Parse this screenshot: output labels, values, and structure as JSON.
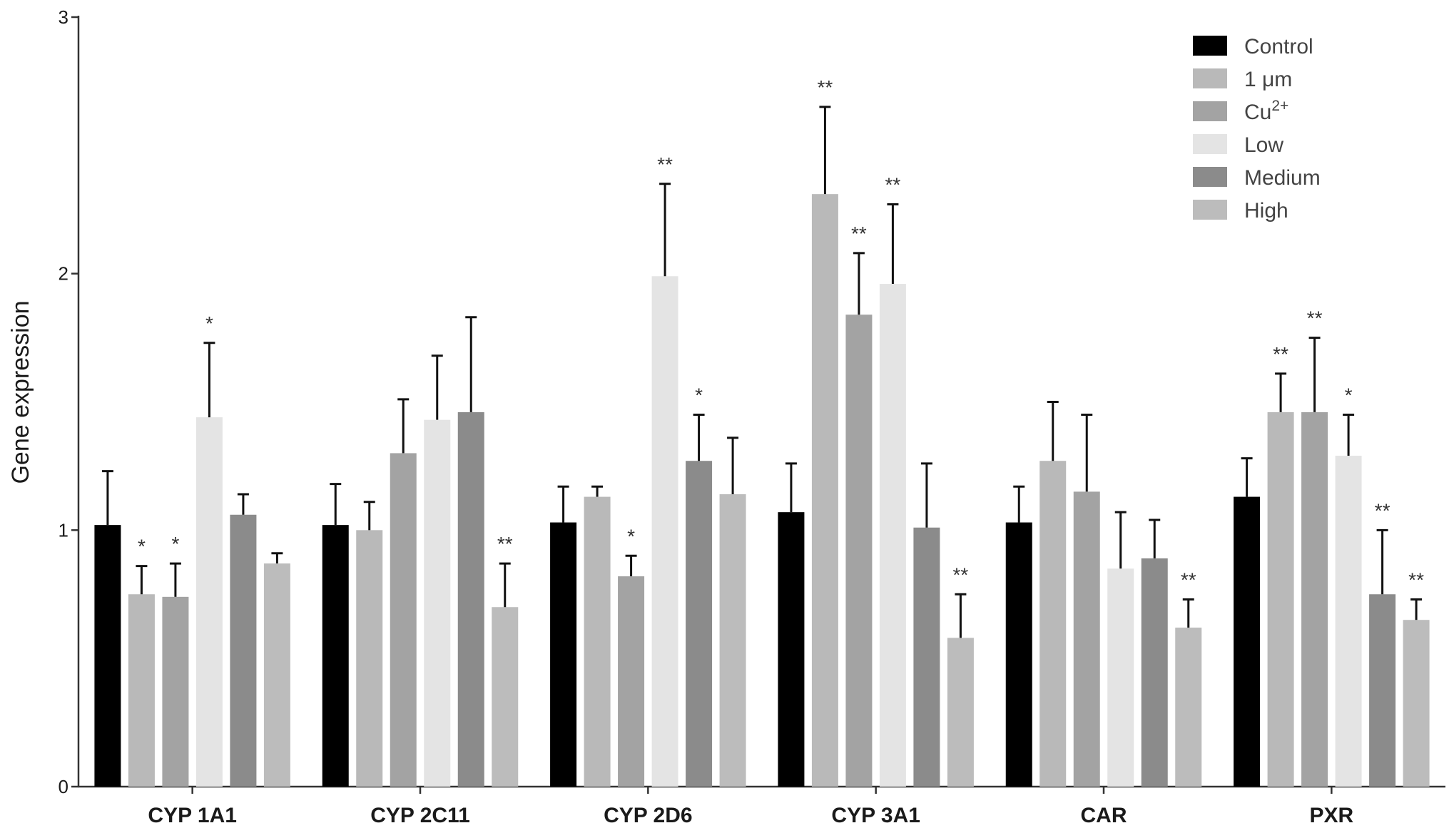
{
  "chart_data": {
    "type": "bar",
    "title": "",
    "xlabel": "",
    "ylabel": "Gene expression",
    "ylim": [
      0,
      3
    ],
    "yticks": [
      "0",
      "1",
      "2",
      "3"
    ],
    "grid": false,
    "legend_position": "top-right",
    "categories": [
      "CYP 1A1",
      "CYP 2C11",
      "CYP 2D6",
      "CYP 3A1",
      "CAR",
      "PXR"
    ],
    "series": [
      {
        "name": "Control",
        "color": "#000000",
        "values": [
          1.02,
          1.02,
          1.03,
          1.07,
          1.03,
          1.13
        ],
        "errors": [
          0.21,
          0.16,
          0.14,
          0.19,
          0.14,
          0.15
        ],
        "sig": [
          "",
          "",
          "",
          "",
          "",
          ""
        ]
      },
      {
        "name": "1 μm",
        "color": "#b9b9b9",
        "values": [
          0.75,
          1.0,
          1.13,
          2.31,
          1.27,
          1.46
        ],
        "errors": [
          0.11,
          0.11,
          0.04,
          0.34,
          0.23,
          0.15
        ],
        "sig": [
          "*",
          "",
          "",
          "**",
          "",
          "**"
        ]
      },
      {
        "name": "Cu2+",
        "name_base": "Cu",
        "name_sup": "2+",
        "color": "#a3a3a3",
        "values": [
          0.74,
          1.3,
          0.82,
          1.84,
          1.15,
          1.46
        ],
        "errors": [
          0.13,
          0.21,
          0.08,
          0.24,
          0.3,
          0.29
        ],
        "sig": [
          "*",
          "",
          "*",
          "**",
          "",
          "**"
        ]
      },
      {
        "name": "Low",
        "color": "#e4e4e4",
        "values": [
          1.44,
          1.43,
          1.99,
          1.96,
          0.85,
          1.29
        ],
        "errors": [
          0.29,
          0.25,
          0.36,
          0.31,
          0.22,
          0.16
        ],
        "sig": [
          "*",
          "",
          "**",
          "**",
          "",
          "*"
        ]
      },
      {
        "name": "Medium",
        "color": "#8b8b8b",
        "values": [
          1.06,
          1.46,
          1.27,
          1.01,
          0.89,
          0.75
        ],
        "errors": [
          0.08,
          0.37,
          0.18,
          0.25,
          0.15,
          0.25
        ],
        "sig": [
          "",
          "",
          "*",
          "",
          "",
          "**"
        ]
      },
      {
        "name": "High",
        "color": "#bcbcbc",
        "values": [
          0.87,
          0.7,
          1.14,
          0.58,
          0.62,
          0.65
        ],
        "errors": [
          0.04,
          0.17,
          0.22,
          0.17,
          0.11,
          0.08
        ],
        "sig": [
          "",
          "**",
          "",
          "**",
          "**",
          "**"
        ]
      }
    ]
  }
}
